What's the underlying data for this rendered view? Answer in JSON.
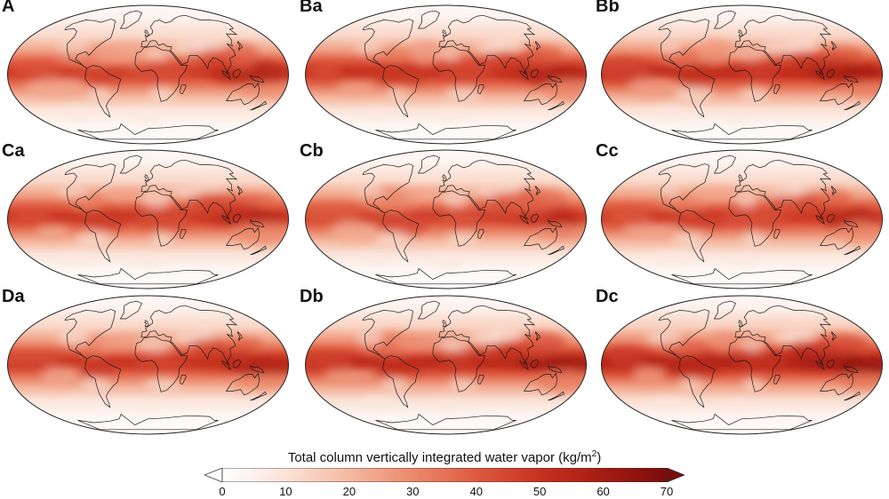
{
  "panels": [
    {
      "label": "A",
      "intensity": 1.0,
      "seed": 1
    },
    {
      "label": "Ba",
      "intensity": 1.05,
      "seed": 2
    },
    {
      "label": "Bb",
      "intensity": 1.1,
      "seed": 3
    },
    {
      "label": "Ca",
      "intensity": 1.02,
      "seed": 4
    },
    {
      "label": "Cb",
      "intensity": 0.97,
      "seed": 5
    },
    {
      "label": "Cc",
      "intensity": 1.0,
      "seed": 6
    },
    {
      "label": "Da",
      "intensity": 1.04,
      "seed": 7
    },
    {
      "label": "Db",
      "intensity": 1.12,
      "seed": 8
    },
    {
      "label": "Dc",
      "intensity": 1.18,
      "seed": 9
    }
  ],
  "colorbar": {
    "title": "Total column vertically integrated water vapor (kg/m",
    "title_sup": "2",
    "title_close": ")",
    "unit": "kg/m2",
    "min": 0,
    "max": 70,
    "ticks": [
      "0",
      "10",
      "20",
      "30",
      "40",
      "50",
      "60",
      "70"
    ],
    "extend": "both",
    "colors": [
      "#ffffff",
      "#fbe3d8",
      "#f5b9a1",
      "#ec8a6c",
      "#de5a3f",
      "#c7321f",
      "#a51c12",
      "#7a0c0c"
    ]
  }
}
